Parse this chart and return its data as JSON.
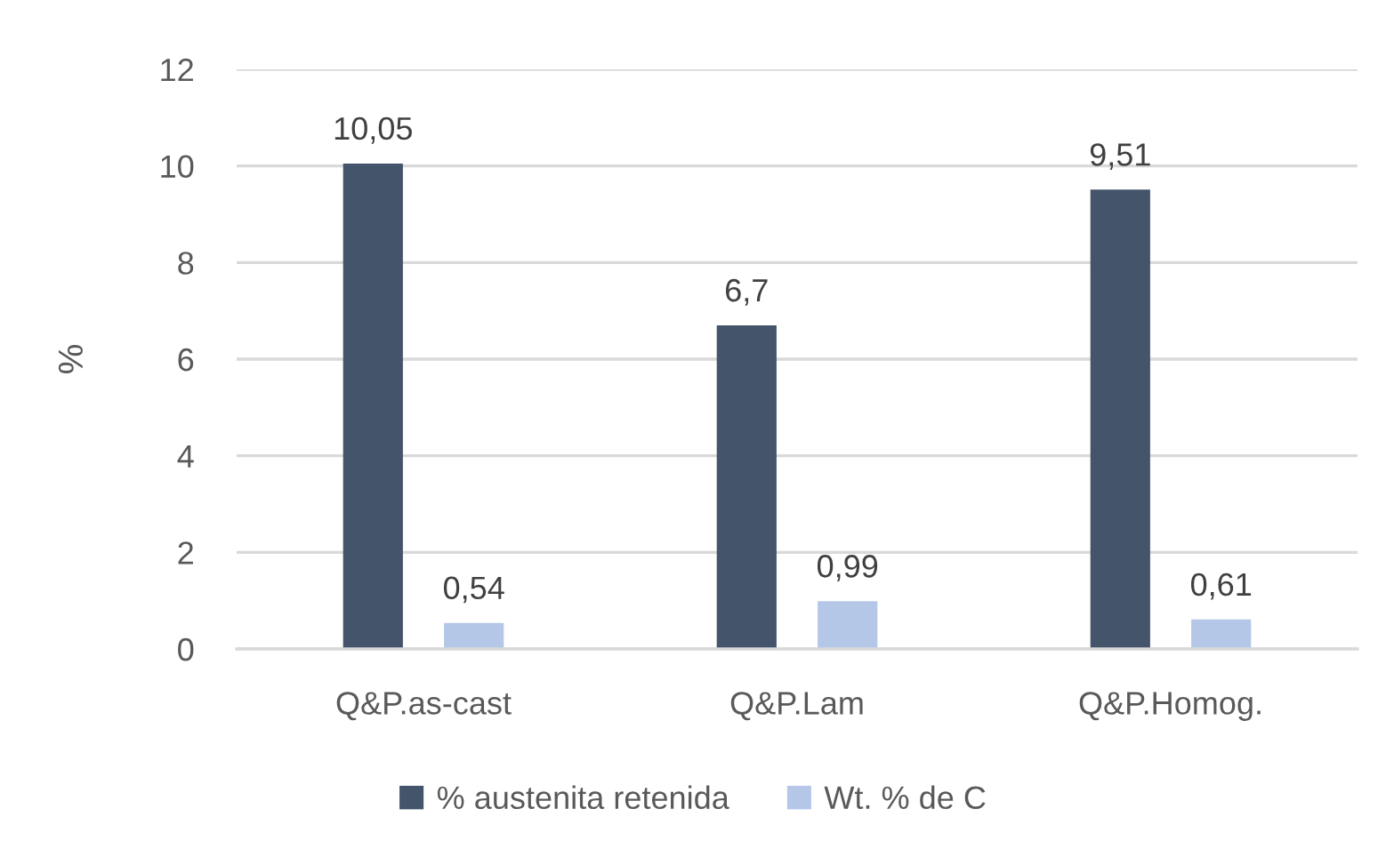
{
  "chart_data": {
    "type": "bar",
    "ylabel": "%",
    "categories": [
      "Q&P.as-cast",
      "Q&P.Lam",
      "Q&P.Homog."
    ],
    "series": [
      {
        "name": "% austenita retenida",
        "color": "#44546a",
        "values": [
          10.05,
          6.7,
          9.51
        ],
        "value_labels": [
          "10,05",
          "6,7",
          "9,51"
        ]
      },
      {
        "name": "Wt. % de C",
        "color": "#b4c7e7",
        "values": [
          0.54,
          0.99,
          0.61
        ],
        "value_labels": [
          "0,54",
          "0,99",
          "0,61"
        ]
      }
    ],
    "ylim": [
      0,
      12
    ],
    "yticks": [
      0,
      2,
      4,
      6,
      8,
      10,
      12
    ],
    "grid": "y",
    "legend": "bottom"
  }
}
